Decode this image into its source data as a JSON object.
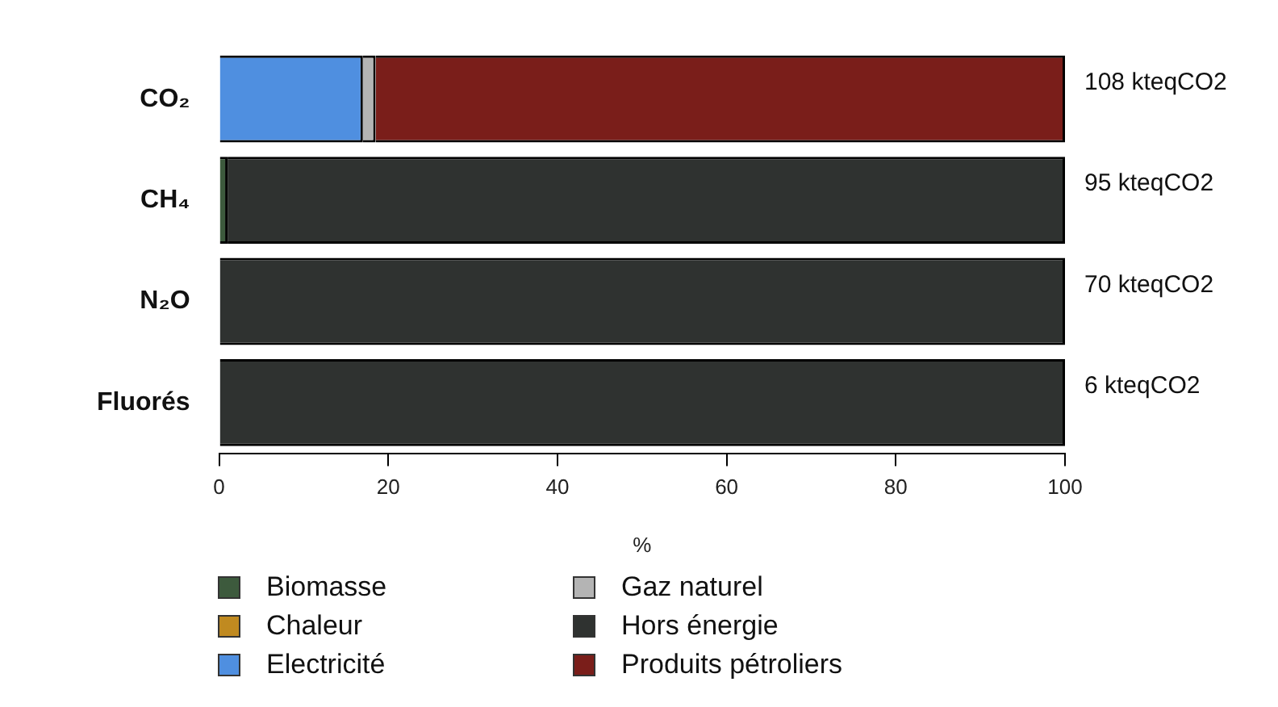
{
  "chart_data": {
    "type": "bar",
    "orientation": "horizontal",
    "stacked": true,
    "categories": [
      "CO₂",
      "CH₄",
      "N₂O",
      "Fluorés"
    ],
    "series": [
      {
        "name": "Biomasse",
        "color": "#3d5a3d",
        "values": [
          0,
          1,
          0,
          0
        ]
      },
      {
        "name": "Chaleur",
        "color": "#c08a20",
        "values": [
          0,
          0,
          0,
          0
        ]
      },
      {
        "name": "Electricité",
        "color": "#4f8fe0",
        "values": [
          17,
          0,
          0,
          0
        ]
      },
      {
        "name": "Gaz naturel",
        "color": "#b4b4b4",
        "values": [
          1.5,
          0,
          0,
          0
        ]
      },
      {
        "name": "Hors énergie",
        "color": "#2f3230",
        "values": [
          0,
          99,
          100,
          100
        ]
      },
      {
        "name": "Produits pétroliers",
        "color": "#7a1e1a",
        "values": [
          81.5,
          0,
          0,
          0
        ]
      }
    ],
    "xlim": [
      0,
      100
    ],
    "xticks": [
      0,
      20,
      40,
      60,
      80,
      100
    ],
    "xlabel": "%",
    "grid": false,
    "legend": "bottom",
    "annotations": [
      "108 kteqCO2",
      "95 kteqCO2",
      "70 kteqCO2",
      "6 kteqCO2"
    ]
  }
}
